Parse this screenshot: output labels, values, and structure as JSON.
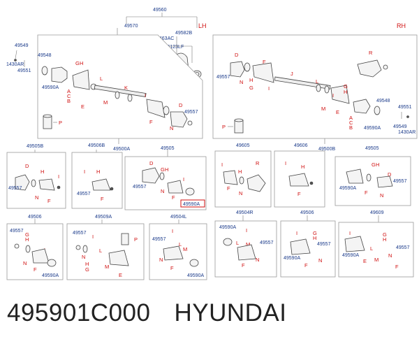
{
  "top": {
    "pn_49560": "49560",
    "pn_49570": "49570",
    "pn_1463AC": "1463AC",
    "pn_49582B": "49582B",
    "pn_1123LF": "1123LF",
    "lh": "LH",
    "rh": "RH"
  },
  "left": {
    "pn_49549": "49549",
    "pn_1430AR": "1430AR",
    "pn_49551": "49551",
    "pn_49548": "49548",
    "pn_49590A": "49590A",
    "pn_49557": "49557",
    "ltr_G": "G",
    "ltr_H": "H",
    "ltr_A": "A",
    "ltr_C": "C",
    "ltr_B": "B",
    "ltr_E": "E",
    "ltr_L": "L",
    "ltr_M": "M",
    "ltr_K": "K",
    "ltr_I": "I",
    "ltr_D": "D",
    "ltr_N": "N",
    "ltr_F": "F",
    "ltr_P": "P"
  },
  "right": {
    "pn_49557": "49557",
    "pn_49548": "49548",
    "pn_49590A": "49590A",
    "pn_49551": "49551",
    "pn_49549": "49549",
    "pn_1430AR": "1430AR",
    "ltr_D": "D",
    "ltr_N": "N",
    "ltr_H": "H",
    "ltr_G": "G",
    "ltr_F": "F",
    "ltr_I": "I",
    "ltr_J": "J",
    "ltr_R": "R",
    "ltr_L": "L",
    "ltr_M": "M",
    "ltr_E": "E",
    "ltr_A": "A",
    "ltr_C": "C",
    "ltr_B": "B",
    "ltr_P": "P"
  },
  "row1": {
    "b1": {
      "title": "49505B",
      "pn": "49557",
      "D": "D",
      "H": "H",
      "N": "N",
      "F": "F",
      "I": "I"
    },
    "b2": {
      "title": "49506B",
      "pn": "49557",
      "I": "I",
      "H": "H",
      "F": "F"
    },
    "b3": {
      "title": "49500A"
    },
    "b4": {
      "title": "49505",
      "pn": "49557",
      "pn_highlight": "49590A",
      "D": "D",
      "G": "G",
      "H": "H",
      "N": "N",
      "F": "F",
      "I": "I"
    },
    "b5": {
      "title": "49605",
      "I": "I",
      "R": "R",
      "H": "H",
      "F": "F",
      "N": "N"
    },
    "b6": {
      "title": "49606",
      "I": "I",
      "H": "H",
      "F": "F"
    },
    "b7": {
      "title": "49500B"
    },
    "b8": {
      "title": "49505",
      "pn_a": "49590A",
      "pn_b": "49557",
      "G": "G",
      "H": "H",
      "D": "D",
      "F": "F",
      "N": "N"
    }
  },
  "row2": {
    "b1": {
      "title": "49506",
      "pn_a": "49557",
      "pn_b": "49590A",
      "G": "G",
      "H": "H",
      "I": "I",
      "N": "N",
      "F": "F"
    },
    "b2": {
      "title": "49509A",
      "pn": "49557",
      "G": "G",
      "H": "H",
      "I": "I",
      "L": "L",
      "M": "M",
      "N": "N",
      "E": "E",
      "P": "P"
    },
    "b3": {
      "title": "49504L",
      "pn_a": "49557",
      "pn_b": "49590A",
      "I": "I",
      "L": "L",
      "M": "M",
      "N": "N",
      "F": "F"
    },
    "b4": {
      "title": "49504R",
      "pn_a": "49590A",
      "pn_b": "49557",
      "I": "I",
      "L": "L",
      "M": "M",
      "N": "N",
      "F": "F"
    },
    "b5": {
      "title": "49506",
      "pn_a": "49590A",
      "pn_b": "49557",
      "I": "I",
      "G": "G",
      "H": "H",
      "F": "F",
      "N": "N"
    },
    "b6": {
      "title": "49609",
      "pn_a": "49590A",
      "pn_b": "49557",
      "I": "I",
      "E": "E",
      "M": "M",
      "L": "L",
      "N": "N",
      "G": "G",
      "H": "H",
      "F": "F"
    }
  },
  "caption": {
    "part_number": "495901C000",
    "brand": "HYUNDAI"
  }
}
